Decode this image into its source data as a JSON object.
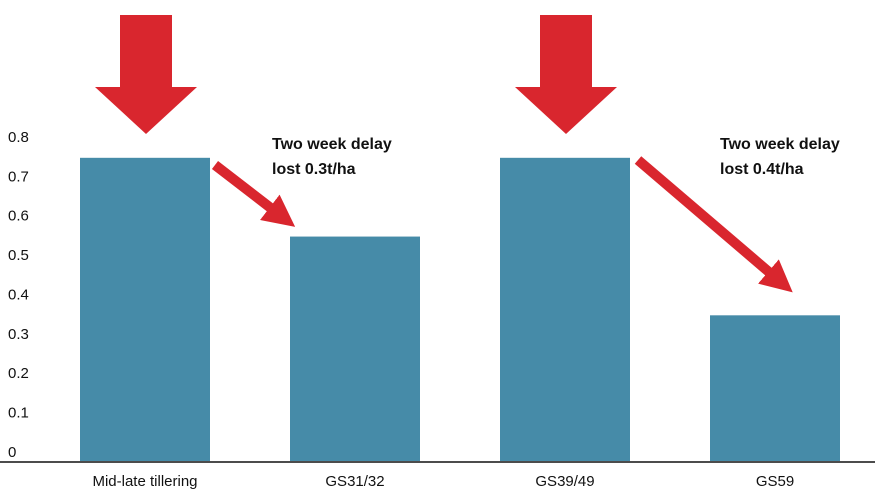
{
  "chart_data": {
    "type": "bar",
    "categories": [
      "Mid-late tillering",
      "GS31/32",
      "GS39/49",
      "GS59"
    ],
    "values": [
      0.77,
      0.57,
      0.77,
      0.37
    ],
    "color": "#468ba8",
    "ylim": [
      0,
      0.8
    ],
    "yticks": [
      0,
      0.1,
      0.2,
      0.3,
      0.4,
      0.5,
      0.6,
      0.7,
      0.8
    ],
    "grid": false,
    "annotations": [
      {
        "lines": [
          "Two week delay",
          "lost 0.3t/ha"
        ]
      },
      {
        "lines": [
          "Two week delay",
          "lost 0.4t/ha"
        ]
      }
    ]
  }
}
